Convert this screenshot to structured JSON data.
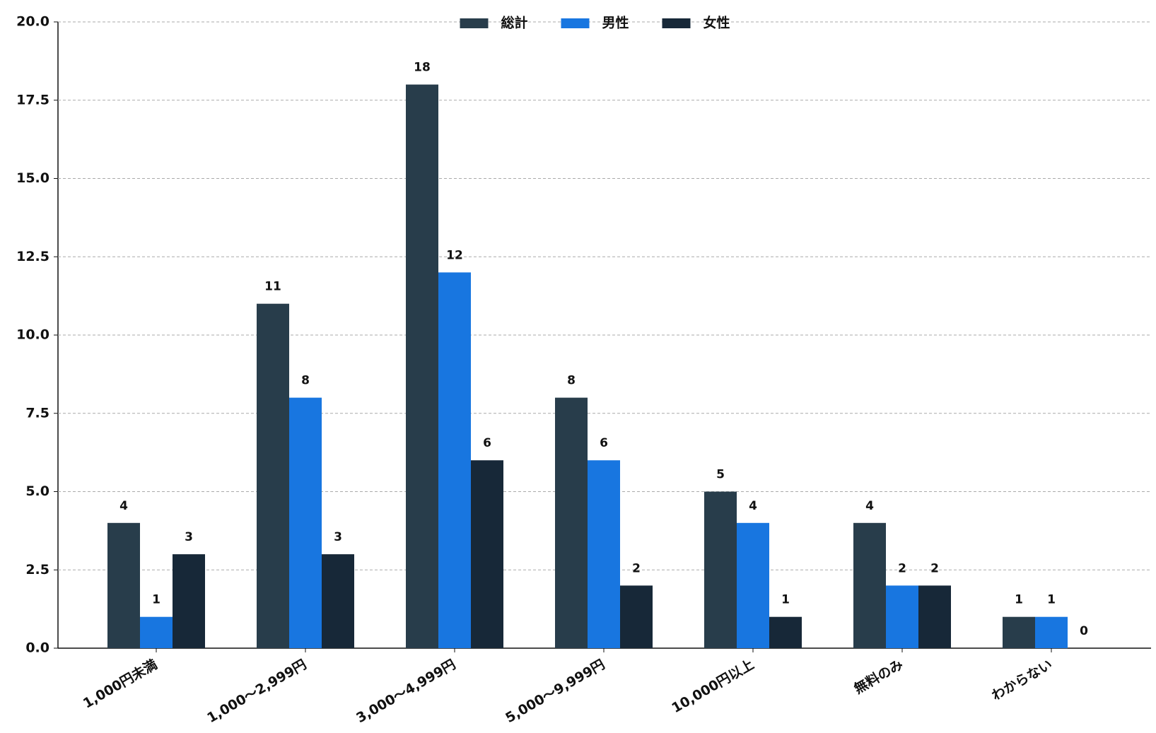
{
  "chart_data": {
    "type": "bar",
    "categories": [
      "1,000円未満",
      "1,000～2,999円",
      "3,000～4,999円",
      "5,000～9,999円",
      "10,000円以上",
      "無料のみ",
      "わからない"
    ],
    "series": [
      {
        "name": "総計",
        "color": "#283d4b",
        "values": [
          4,
          11,
          18,
          8,
          5,
          4,
          1
        ]
      },
      {
        "name": "男性",
        "color": "#1876e0",
        "values": [
          1,
          8,
          12,
          6,
          4,
          2,
          1
        ]
      },
      {
        "name": "女性",
        "color": "#172838",
        "values": [
          3,
          3,
          6,
          2,
          1,
          2,
          0
        ]
      }
    ],
    "ylim": [
      0,
      20
    ],
    "yticks": [
      {
        "value": 0,
        "label": "0.0"
      },
      {
        "value": 2.5,
        "label": "2.5"
      },
      {
        "value": 5,
        "label": "5.0"
      },
      {
        "value": 7.5,
        "label": "7.5"
      },
      {
        "value": 10,
        "label": "10.0"
      },
      {
        "value": 12.5,
        "label": "12.5"
      },
      {
        "value": 15,
        "label": "15.0"
      },
      {
        "value": 17.5,
        "label": "17.5"
      },
      {
        "value": 20,
        "label": "20.0"
      }
    ],
    "grid": true,
    "legend": "top"
  }
}
